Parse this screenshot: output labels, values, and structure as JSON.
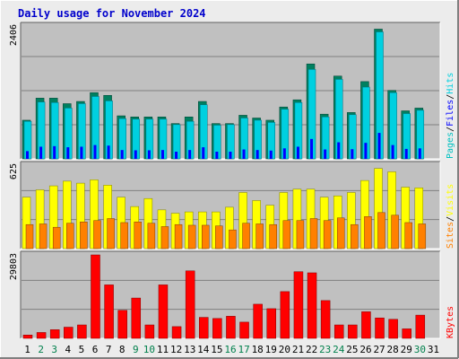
{
  "title": "Daily usage for November 2024",
  "colors": {
    "background": "#ececec",
    "plot": "#c0c0c0",
    "title": "#0000cc",
    "hits": "#00d0e0",
    "hits_shadow": "#008060",
    "files": "#0000ff",
    "pages": "#00c0c0",
    "visits": "#ffff00",
    "sites": "#ff8000",
    "kbytes": "#ff0000",
    "weekend_label": "#00804c",
    "weekday_label": "#000000"
  },
  "chart_data": [
    {
      "type": "bar",
      "panel": "hits-files-pages",
      "ymax_label": "2406",
      "ylim": [
        0,
        2406
      ],
      "grid": true,
      "legend": [
        "Pages",
        "Files",
        "Hits"
      ],
      "legend_colors": [
        "#00c0c0",
        "#0000ff",
        "#00d0e0"
      ],
      "categories": [
        "1",
        "2",
        "3",
        "4",
        "5",
        "6",
        "7",
        "8",
        "9",
        "10",
        "11",
        "12",
        "13",
        "14",
        "15",
        "16",
        "17",
        "18",
        "19",
        "20",
        "21",
        "22",
        "23",
        "24",
        "25",
        "26",
        "27",
        "28",
        "29",
        "30",
        "31"
      ],
      "series": [
        {
          "name": "Hits",
          "values": [
            700,
            1100,
            1100,
            1000,
            1040,
            1200,
            1150,
            780,
            760,
            760,
            760,
            640,
            760,
            1040,
            640,
            640,
            790,
            740,
            700,
            940,
            1070,
            1720,
            810,
            1500,
            840,
            1400,
            2350,
            1240,
            870,
            920,
            0
          ]
        },
        {
          "name": "Files",
          "values": [
            680,
            1030,
            1020,
            920,
            1000,
            1130,
            1050,
            730,
            720,
            720,
            720,
            620,
            680,
            980,
            610,
            620,
            740,
            700,
            660,
            900,
            1020,
            1620,
            760,
            1440,
            800,
            1300,
            2300,
            1200,
            820,
            880,
            0
          ]
        },
        {
          "name": "Pages",
          "values": [
            140,
            220,
            230,
            210,
            220,
            250,
            240,
            160,
            155,
            155,
            160,
            130,
            160,
            210,
            130,
            130,
            170,
            160,
            150,
            190,
            220,
            360,
            170,
            300,
            175,
            290,
            470,
            250,
            180,
            190,
            0
          ]
        }
      ]
    },
    {
      "type": "bar",
      "panel": "visits-sites",
      "ymax_label": "625",
      "ylim": [
        0,
        625
      ],
      "grid": true,
      "legend": [
        "Sites",
        "Visits"
      ],
      "legend_colors": [
        "#ff8000",
        "#ffff00"
      ],
      "categories": [
        "1",
        "2",
        "3",
        "4",
        "5",
        "6",
        "7",
        "8",
        "9",
        "10",
        "11",
        "12",
        "13",
        "14",
        "15",
        "16",
        "17",
        "18",
        "19",
        "20",
        "21",
        "22",
        "23",
        "24",
        "25",
        "26",
        "27",
        "28",
        "29",
        "30",
        "31"
      ],
      "series": [
        {
          "name": "Visits",
          "values": [
            385,
            440,
            470,
            505,
            490,
            515,
            475,
            385,
            315,
            375,
            290,
            265,
            275,
            275,
            275,
            310,
            420,
            360,
            325,
            420,
            445,
            445,
            385,
            395,
            420,
            510,
            600,
            575,
            460,
            455,
            0
          ]
        },
        {
          "name": "Sites",
          "values": [
            180,
            185,
            160,
            190,
            200,
            210,
            225,
            195,
            200,
            190,
            165,
            180,
            175,
            175,
            170,
            140,
            190,
            185,
            180,
            210,
            210,
            225,
            210,
            230,
            180,
            240,
            270,
            250,
            195,
            185,
            0
          ]
        }
      ]
    },
    {
      "type": "bar",
      "panel": "kbytes",
      "ymax_label": "29803",
      "ylim": [
        0,
        29803
      ],
      "grid": true,
      "legend": [
        "KBytes"
      ],
      "legend_colors": [
        "#ff0000"
      ],
      "categories": [
        "1",
        "2",
        "3",
        "4",
        "5",
        "6",
        "7",
        "8",
        "9",
        "10",
        "11",
        "12",
        "13",
        "14",
        "15",
        "16",
        "17",
        "18",
        "19",
        "20",
        "21",
        "22",
        "23",
        "24",
        "25",
        "26",
        "27",
        "28",
        "29",
        "30",
        "31"
      ],
      "series": [
        {
          "name": "KBytes",
          "values": [
            1200,
            2100,
            3100,
            4000,
            4800,
            29803,
            19100,
            10000,
            14400,
            4800,
            19100,
            4200,
            24100,
            7500,
            7100,
            7900,
            5800,
            12200,
            10600,
            16700,
            23800,
            23400,
            13500,
            4800,
            4800,
            9500,
            7300,
            6800,
            3400,
            8300,
            0
          ]
        }
      ]
    }
  ],
  "x_labels": [
    {
      "text": "1",
      "weekend": false
    },
    {
      "text": "2",
      "weekend": true
    },
    {
      "text": "3",
      "weekend": true
    },
    {
      "text": "4",
      "weekend": false
    },
    {
      "text": "5",
      "weekend": false
    },
    {
      "text": "6",
      "weekend": false
    },
    {
      "text": "7",
      "weekend": false
    },
    {
      "text": "8",
      "weekend": false
    },
    {
      "text": "9",
      "weekend": true
    },
    {
      "text": "10",
      "weekend": true
    },
    {
      "text": "11",
      "weekend": false
    },
    {
      "text": "12",
      "weekend": false
    },
    {
      "text": "13",
      "weekend": false
    },
    {
      "text": "14",
      "weekend": false
    },
    {
      "text": "15",
      "weekend": false
    },
    {
      "text": "16",
      "weekend": true
    },
    {
      "text": "17",
      "weekend": true
    },
    {
      "text": "18",
      "weekend": false
    },
    {
      "text": "19",
      "weekend": false
    },
    {
      "text": "20",
      "weekend": false
    },
    {
      "text": "21",
      "weekend": false
    },
    {
      "text": "22",
      "weekend": false
    },
    {
      "text": "23",
      "weekend": true
    },
    {
      "text": "24",
      "weekend": true
    },
    {
      "text": "25",
      "weekend": false
    },
    {
      "text": "26",
      "weekend": false
    },
    {
      "text": "27",
      "weekend": false
    },
    {
      "text": "28",
      "weekend": false
    },
    {
      "text": "29",
      "weekend": false
    },
    {
      "text": "30",
      "weekend": true
    },
    {
      "text": "31",
      "weekend": false
    }
  ],
  "legend_separator": "/"
}
